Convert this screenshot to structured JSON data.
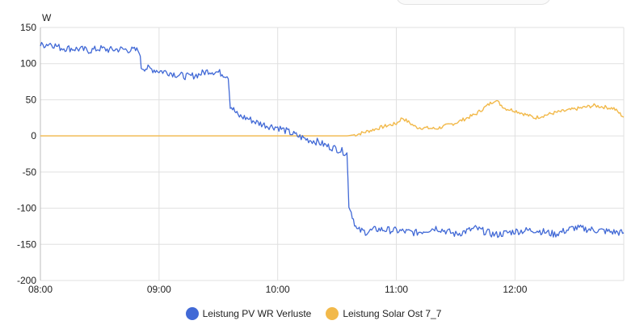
{
  "colors": {
    "blue": "#4169d6",
    "orange": "#f2b94a"
  },
  "chart_data": {
    "type": "line",
    "ylabel": "W",
    "ylim": [
      -200,
      150
    ],
    "yticks": [
      150,
      100,
      50,
      0,
      -50,
      -100,
      -150,
      -200
    ],
    "xlim": [
      "08:00",
      "12:55"
    ],
    "xticks": [
      "08:00",
      "09:00",
      "10:00",
      "11:00",
      "12:00"
    ],
    "grid": true,
    "legend_position": "bottom",
    "series": [
      {
        "name": "Leistung PV WR Verluste",
        "color": "#4169d6",
        "x": [
          "08:00",
          "08:05",
          "08:10",
          "08:15",
          "08:20",
          "08:25",
          "08:30",
          "08:35",
          "08:40",
          "08:45",
          "08:50",
          "08:51",
          "08:55",
          "09:00",
          "09:05",
          "09:10",
          "09:15",
          "09:20",
          "09:25",
          "09:30",
          "09:35",
          "09:36",
          "09:40",
          "09:45",
          "09:50",
          "09:55",
          "10:00",
          "10:05",
          "10:10",
          "10:15",
          "10:20",
          "10:25",
          "10:30",
          "10:35",
          "10:36",
          "10:40",
          "10:45",
          "10:50",
          "11:00",
          "11:10",
          "11:20",
          "11:30",
          "11:40",
          "11:50",
          "12:00",
          "12:10",
          "12:20",
          "12:30",
          "12:40",
          "12:50",
          "12:55"
        ],
        "y": [
          125,
          128,
          122,
          121,
          120,
          118,
          121,
          119,
          120,
          119,
          118,
          95,
          93,
          90,
          88,
          84,
          82,
          85,
          90,
          88,
          83,
          42,
          28,
          24,
          18,
          14,
          12,
          6,
          0,
          -5,
          -8,
          -14,
          -18,
          -24,
          -95,
          -130,
          -133,
          -129,
          -131,
          -134,
          -127,
          -136,
          -128,
          -137,
          -132,
          -130,
          -136,
          -127,
          -130,
          -133,
          -134
        ]
      },
      {
        "name": "Leistung Solar Ost 7_7",
        "color": "#f2b94a",
        "x": [
          "08:00",
          "10:30",
          "10:35",
          "10:40",
          "10:45",
          "10:50",
          "10:55",
          "11:00",
          "11:03",
          "11:10",
          "11:20",
          "11:30",
          "11:40",
          "11:45",
          "11:50",
          "11:55",
          "12:00",
          "12:05",
          "12:10",
          "12:20",
          "12:30",
          "12:40",
          "12:50",
          "12:55"
        ],
        "y": [
          0,
          0,
          0,
          2,
          6,
          10,
          14,
          17,
          25,
          12,
          10,
          18,
          30,
          40,
          50,
          38,
          35,
          30,
          25,
          32,
          37,
          42,
          38,
          26
        ]
      }
    ]
  }
}
